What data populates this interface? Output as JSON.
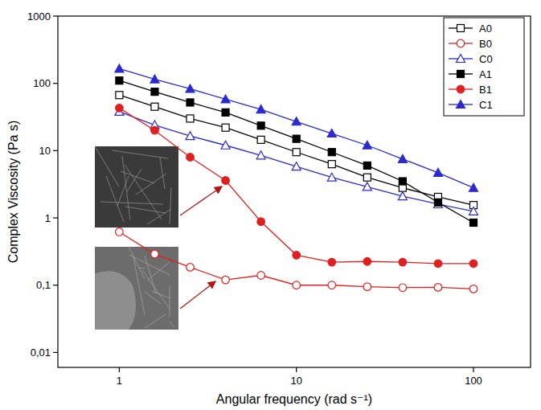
{
  "chart_data": {
    "type": "line",
    "x_label": "Angular frequency (rad s⁻¹)",
    "y_label": "Complex Viscosity (Pa s)",
    "log": true,
    "legend": "top-right",
    "grid": false,
    "x": [
      1,
      1.585,
      2.512,
      3.981,
      6.31,
      10,
      15.85,
      25.12,
      39.81,
      63.1,
      100
    ],
    "xlim": [
      0.45,
      210
    ],
    "xticks": [
      1,
      10,
      100
    ],
    "ylim": [
      0.006,
      1000
    ],
    "yticks": [
      {
        "value": 0.01,
        "label": "0,01"
      },
      {
        "value": 0.1,
        "label": "0,1"
      },
      1,
      10,
      100,
      1000
    ],
    "series": [
      {
        "name": "A0",
        "color": "#000000",
        "marker": "open-square",
        "line_style": "solid",
        "values": [
          67,
          45,
          30,
          22,
          14.5,
          9.5,
          6.3,
          4.0,
          2.8,
          2.05,
          1.55
        ]
      },
      {
        "name": "B0",
        "color": "#e02020",
        "marker": "open-circle",
        "line_style": "solid",
        "values": [
          0.62,
          0.29,
          0.185,
          0.12,
          0.14,
          0.1,
          0.1,
          0.095,
          0.092,
          0.093,
          0.088
        ]
      },
      {
        "name": "C0",
        "color": "#2a2ad0",
        "marker": "open-triangle",
        "line_style": "solid",
        "values": [
          38,
          24,
          16.5,
          12,
          8.5,
          5.8,
          4.0,
          2.9,
          2.1,
          1.6,
          1.25
        ]
      },
      {
        "name": "A1",
        "color": "#000000",
        "marker": "filled-square",
        "line_style": "solid",
        "values": [
          110,
          75,
          52,
          37,
          23.5,
          15,
          9.5,
          6,
          3.5,
          1.7,
          0.85
        ]
      },
      {
        "name": "B1",
        "color": "#e02020",
        "marker": "filled-circle",
        "line_style": "solid",
        "values": [
          43,
          20,
          8,
          3.6,
          0.88,
          0.28,
          0.22,
          0.225,
          0.22,
          0.21,
          0.21
        ]
      },
      {
        "name": "C1",
        "color": "#2a2ad0",
        "marker": "filled-triangle",
        "line_style": "solid",
        "values": [
          165,
          115,
          83,
          58,
          41,
          27,
          18,
          12,
          7.5,
          4.7,
          2.8
        ]
      }
    ]
  }
}
